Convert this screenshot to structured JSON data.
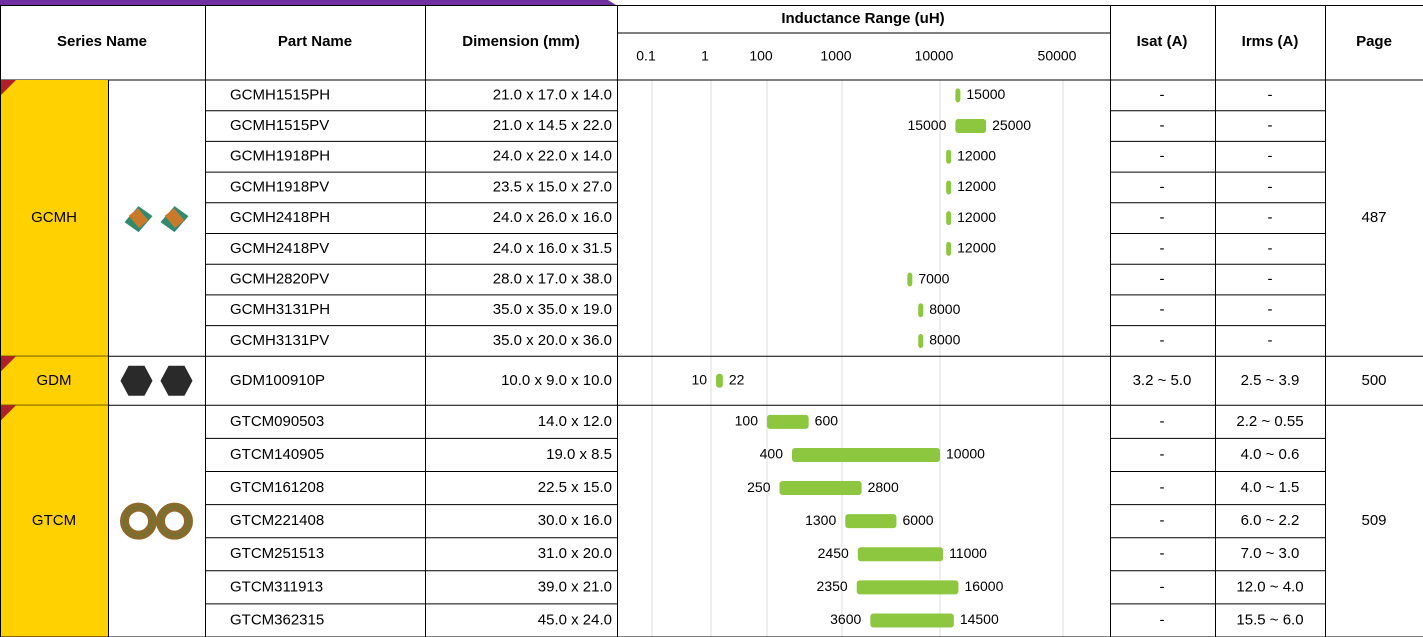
{
  "header": {
    "series_name": "Series Name",
    "part_name": "Part Name",
    "dimension": "Dimension (mm)",
    "inductance": "Inductance Range (uH)",
    "isat": "Isat (A)",
    "irms": "Irms (A)",
    "page": "Page"
  },
  "scale_ticks": [
    0.1,
    1,
    100,
    1000,
    10000,
    50000
  ],
  "groups": [
    {
      "series": "GCMH",
      "page": 487,
      "rows": [
        {
          "part": "GCMH1515PH",
          "dimension": "21.0 x 17.0 x 14.0",
          "inductance": [
            15000
          ],
          "isat": "-",
          "irms": "-"
        },
        {
          "part": "GCMH1515PV",
          "dimension": "21.0 x 14.5 x 22.0",
          "inductance": [
            15000,
            25000
          ],
          "isat": "-",
          "irms": "-"
        },
        {
          "part": "GCMH1918PH",
          "dimension": "24.0 x 22.0 x 14.0",
          "inductance": [
            12000
          ],
          "isat": "-",
          "irms": "-"
        },
        {
          "part": "GCMH1918PV",
          "dimension": "23.5 x 15.0 x 27.0",
          "inductance": [
            12000
          ],
          "isat": "-",
          "irms": "-"
        },
        {
          "part": "GCMH2418PH",
          "dimension": "24.0 x 26.0 x 16.0",
          "inductance": [
            12000
          ],
          "isat": "-",
          "irms": "-"
        },
        {
          "part": "GCMH2418PV",
          "dimension": "24.0 x 16.0 x 31.5",
          "inductance": [
            12000
          ],
          "isat": "-",
          "irms": "-"
        },
        {
          "part": "GCMH2820PV",
          "dimension": "28.0 x 17.0 x 38.0",
          "inductance": [
            7000
          ],
          "isat": "-",
          "irms": "-"
        },
        {
          "part": "GCMH3131PH",
          "dimension": "35.0 x 35.0 x 19.0",
          "inductance": [
            8000
          ],
          "isat": "-",
          "irms": "-"
        },
        {
          "part": "GCMH3131PV",
          "dimension": "35.0 x 20.0 x 36.0",
          "inductance": [
            8000
          ],
          "isat": "-",
          "irms": "-"
        }
      ]
    },
    {
      "series": "GDM",
      "page": 500,
      "rows": [
        {
          "part": "GDM100910P",
          "dimension": "10.0 x 9.0 x 10.0",
          "inductance": [
            10,
            22
          ],
          "isat": "3.2 ~ 5.0",
          "irms": "2.5 ~ 3.9"
        }
      ]
    },
    {
      "series": "GTCM",
      "page": 509,
      "rows": [
        {
          "part": "GTCM090503",
          "dimension": "14.0 x 12.0",
          "inductance": [
            100,
            600
          ],
          "isat": "-",
          "irms": "2.2 ~ 0.55"
        },
        {
          "part": "GTCM140905",
          "dimension": "19.0 x 8.5",
          "inductance": [
            400,
            10000
          ],
          "isat": "-",
          "irms": "4.0 ~ 0.6"
        },
        {
          "part": "GTCM161208",
          "dimension": "22.5 x 15.0",
          "inductance": [
            250,
            2800
          ],
          "isat": "-",
          "irms": "4.0 ~ 1.5"
        },
        {
          "part": "GTCM221408",
          "dimension": "30.0 x 16.0",
          "inductance": [
            1300,
            6000
          ],
          "isat": "-",
          "irms": "6.0 ~ 2.2"
        },
        {
          "part": "GTCM251513",
          "dimension": "31.0 x 20.0",
          "inductance": [
            2450,
            11000
          ],
          "isat": "-",
          "irms": "7.0 ~ 3.0"
        },
        {
          "part": "GTCM311913",
          "dimension": "39.0 x 21.0",
          "inductance": [
            2350,
            16000
          ],
          "isat": "-",
          "irms": "12.0 ~ 4.0"
        },
        {
          "part": "GTCM362315",
          "dimension": "45.0 x 24.0",
          "inductance": [
            3600,
            14500
          ],
          "isat": "-",
          "irms": "15.5 ~ 6.0"
        }
      ]
    }
  ]
}
